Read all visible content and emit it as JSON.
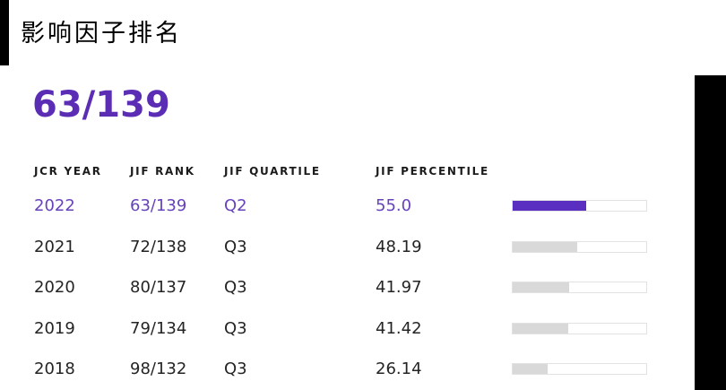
{
  "page": {
    "title": "影响因子排名",
    "overall_rank": "63/139"
  },
  "colors": {
    "big_number": "#5b2db5",
    "accent_text": "#6642bb",
    "accent_bar": "#5a2ec0",
    "gray_bar": "#d9d9d9",
    "track_border": "#e2e2e2"
  },
  "table": {
    "headers": [
      "JCR YEAR",
      "JIF RANK",
      "JIF QUARTILE",
      "JIF PERCENTILE",
      ""
    ],
    "rows": [
      {
        "year": "2022",
        "rank": "63/139",
        "quartile": "Q2",
        "percentile": "55.0",
        "percent": 55.0,
        "highlight": true
      },
      {
        "year": "2021",
        "rank": "72/138",
        "quartile": "Q3",
        "percentile": "48.19",
        "percent": 48.19,
        "highlight": false
      },
      {
        "year": "2020",
        "rank": "80/137",
        "quartile": "Q3",
        "percentile": "41.97",
        "percent": 41.97,
        "highlight": false
      },
      {
        "year": "2019",
        "rank": "79/134",
        "quartile": "Q3",
        "percentile": "41.42",
        "percent": 41.42,
        "highlight": false
      },
      {
        "year": "2018",
        "rank": "98/132",
        "quartile": "Q3",
        "percentile": "26.14",
        "percent": 26.14,
        "highlight": false
      }
    ]
  }
}
